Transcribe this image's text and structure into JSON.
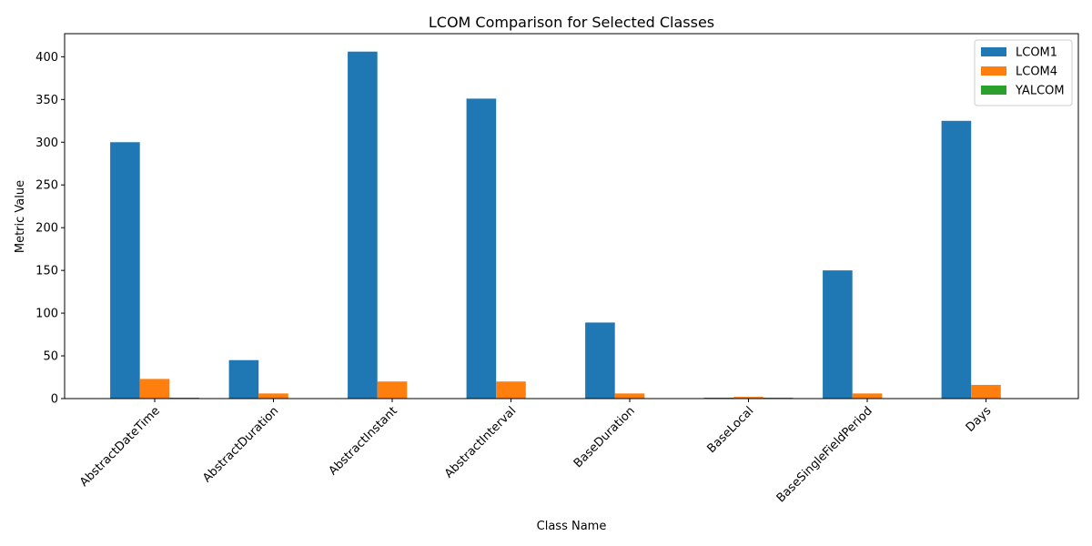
{
  "chart_data": {
    "type": "bar",
    "title": "LCOM Comparison for Selected Classes",
    "xlabel": "Class Name",
    "ylabel": "Metric Value",
    "ylim": [
      0,
      427
    ],
    "yticks": [
      0,
      50,
      100,
      150,
      200,
      250,
      300,
      350,
      400
    ],
    "categories": [
      "AbstractDateTime",
      "AbstractDuration",
      "AbstractInstant",
      "AbstractInterval",
      "BaseDuration",
      "BaseLocal",
      "BaseSingleFieldPeriod",
      "Days"
    ],
    "series": [
      {
        "name": "LCOM1",
        "color": "#1f77b4",
        "values": [
          300,
          45,
          406,
          351,
          89,
          1,
          150,
          325
        ]
      },
      {
        "name": "LCOM4",
        "color": "#ff7f0e",
        "values": [
          23,
          6,
          20,
          20,
          6,
          2,
          6,
          16
        ]
      },
      {
        "name": "YALCOM",
        "color": "#2ca02c",
        "values": [
          1,
          0,
          0,
          0,
          0,
          1,
          0,
          0
        ]
      }
    ],
    "legend_position": "top-right",
    "grid": false
  }
}
